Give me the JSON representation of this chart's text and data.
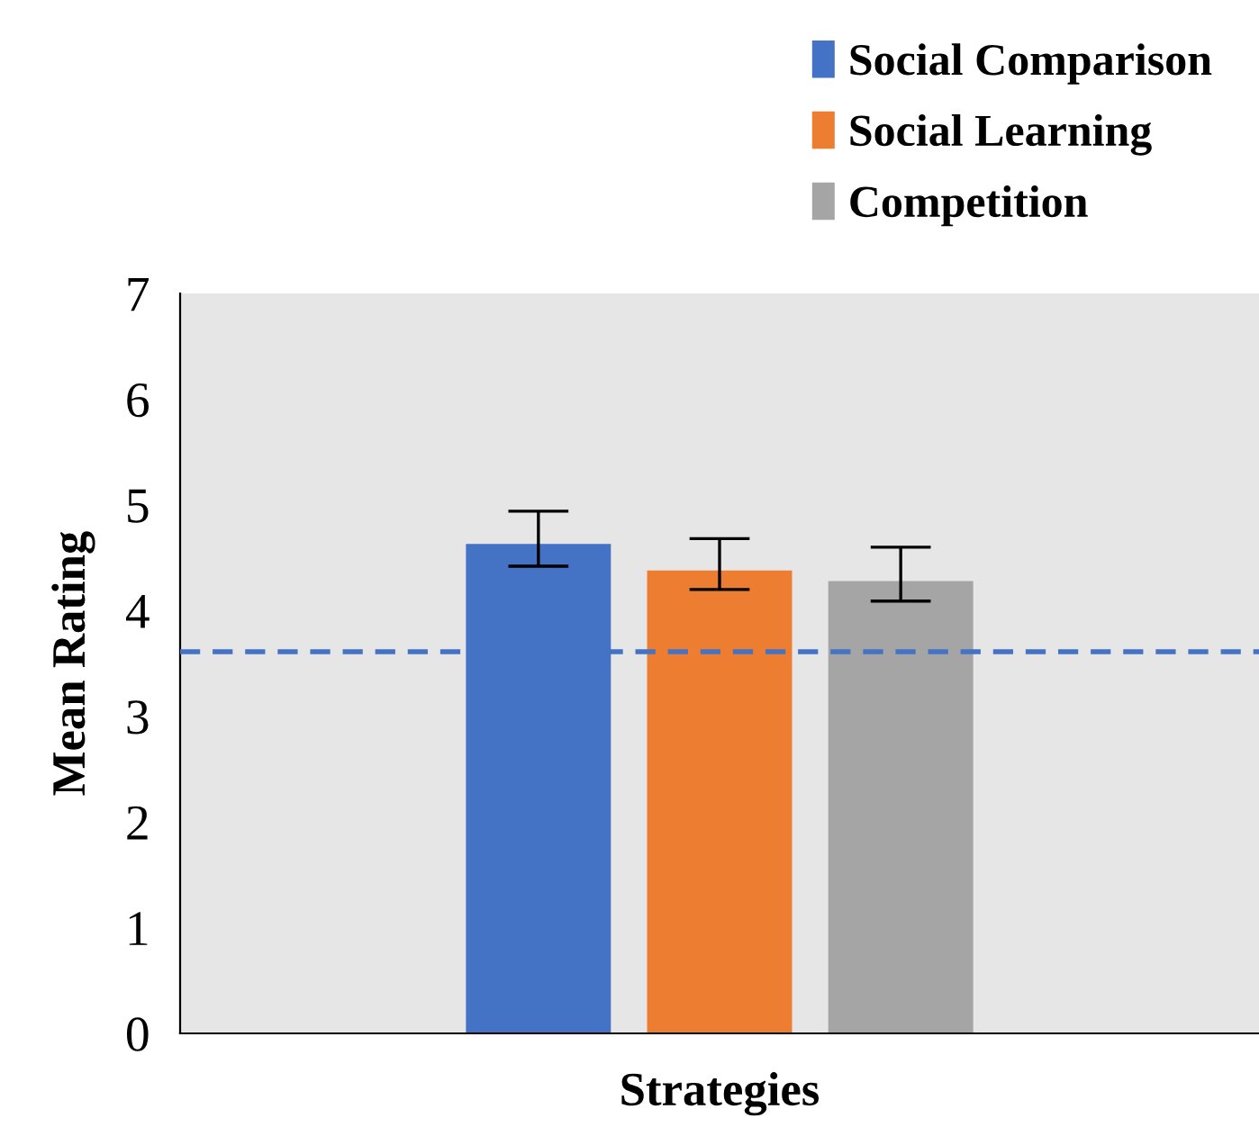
{
  "chart_data": {
    "type": "bar",
    "categories": [
      null
    ],
    "xlabel": "Strategies",
    "ylabel": "Mean Rating",
    "series": [
      {
        "name": "Social Comparison",
        "color": "#4472c4",
        "values": [
          4.63
        ],
        "errors": [
          [
            4.42,
            4.94
          ]
        ]
      },
      {
        "name": "Social Learning",
        "color": "#ed7d31",
        "values": [
          4.38
        ],
        "errors": [
          [
            4.2,
            4.68
          ]
        ]
      },
      {
        "name": "Competition",
        "color": "#a5a5a5",
        "values": [
          4.28
        ],
        "errors": [
          [
            4.09,
            4.6
          ]
        ]
      }
    ],
    "ylim": [
      0,
      7
    ],
    "yticks": [
      0,
      1,
      2,
      3,
      4,
      5,
      6,
      7
    ],
    "grid": false,
    "legend": "top right",
    "ref_lines": [
      {
        "axis": "y",
        "value": 3.61,
        "color": "#4472c4",
        "line_style": "dashed"
      }
    ]
  }
}
